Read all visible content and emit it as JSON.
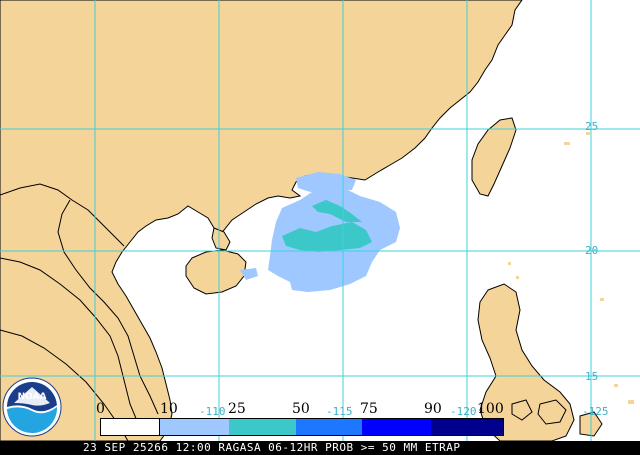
{
  "grid_labels": {
    "lat_25": "25",
    "lat_20": "20",
    "lat_15": "15",
    "lon_110": "-110",
    "lon_115": "-115",
    "lon_120": "-120",
    "lon_125": "-125"
  },
  "legend": {
    "ticks": [
      "0",
      "10",
      "25",
      "50",
      "75",
      "90",
      "100"
    ],
    "colors": [
      "#ffffff",
      "#9ec8ff",
      "#3cc8c8",
      "#1e78ff",
      "#0000ff",
      "#00008c"
    ]
  },
  "footer": {
    "text": "23 SEP 25266 12:00 RAGASA 06-12HR PROB >= 50 MM ETRAP"
  },
  "logo": {
    "label": "NOAA"
  },
  "colors": {
    "land": "#f5d49a",
    "ocean": "#ffffff",
    "grid": "#3fd0d8",
    "border": "#000000",
    "prob_10_25": "#9ec8ff",
    "prob_25_50": "#3cc8c8"
  }
}
